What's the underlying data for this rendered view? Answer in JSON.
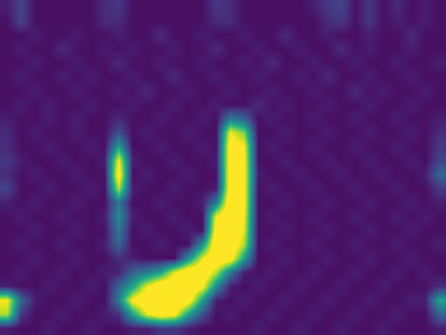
{
  "chart_data": {
    "type": "heatmap",
    "tick_labels": false,
    "zlim": [
      0,
      25
    ],
    "z": [
      [
        2,
        5,
        1,
        1,
        1,
        1,
        1,
        3,
        4,
        1,
        1,
        1,
        1,
        1,
        1,
        4,
        3,
        1,
        1,
        1,
        1,
        1,
        2,
        4,
        5,
        1,
        4,
        1,
        3,
        1,
        2,
        1
      ],
      [
        1,
        5,
        1,
        1,
        1,
        1,
        1,
        3,
        3,
        1,
        1,
        1,
        1,
        1,
        1,
        3,
        3,
        1,
        1,
        1,
        1,
        1,
        1,
        3,
        4,
        1,
        4,
        1,
        2,
        1,
        2,
        1
      ],
      [
        1,
        1,
        2,
        1,
        1,
        2,
        1,
        1,
        2,
        1,
        1,
        3,
        1,
        1,
        2,
        1,
        1,
        2,
        1,
        1,
        3,
        1,
        1,
        2,
        1,
        1,
        2,
        1,
        1,
        3,
        1,
        1
      ],
      [
        1,
        2,
        1,
        1,
        3,
        1,
        1,
        2,
        1,
        2,
        1,
        1,
        2,
        1,
        1,
        3,
        1,
        1,
        2,
        1,
        1,
        2,
        1,
        1,
        3,
        1,
        2,
        1,
        1,
        2,
        1,
        1
      ],
      [
        1,
        1,
        2,
        1,
        1,
        2,
        1,
        1,
        3,
        1,
        1,
        2,
        1,
        1,
        2,
        1,
        1,
        2,
        1,
        3,
        1,
        1,
        2,
        1,
        1,
        2,
        1,
        1,
        2,
        1,
        1,
        2
      ],
      [
        1,
        2,
        1,
        1,
        2,
        1,
        2,
        1,
        1,
        2,
        1,
        1,
        3,
        1,
        1,
        2,
        1,
        1,
        2,
        1,
        1,
        2,
        1,
        3,
        1,
        1,
        2,
        1,
        1,
        2,
        1,
        1
      ],
      [
        1,
        1,
        2,
        1,
        1,
        2,
        1,
        1,
        2,
        1,
        3,
        1,
        1,
        2,
        1,
        1,
        2,
        1,
        1,
        2,
        1,
        1,
        2,
        1,
        1,
        3,
        1,
        2,
        1,
        1,
        2,
        1
      ],
      [
        1,
        2,
        1,
        2,
        1,
        1,
        2,
        1,
        1,
        2,
        1,
        1,
        2,
        1,
        1,
        2,
        1,
        1,
        3,
        1,
        2,
        1,
        1,
        2,
        1,
        1,
        2,
        1,
        1,
        2,
        1,
        1
      ],
      [
        2,
        1,
        1,
        2,
        1,
        2,
        1,
        1,
        3,
        1,
        1,
        2,
        1,
        1,
        2,
        1,
        10,
        8,
        1,
        2,
        1,
        1,
        2,
        1,
        1,
        2,
        1,
        1,
        2,
        1,
        1,
        2
      ],
      [
        3,
        1,
        2,
        1,
        1,
        2,
        1,
        1,
        6,
        1,
        2,
        1,
        1,
        2,
        1,
        1,
        25,
        20,
        1,
        1,
        2,
        1,
        1,
        2,
        1,
        1,
        2,
        1,
        1,
        2,
        1,
        3
      ],
      [
        3,
        1,
        1,
        2,
        1,
        1,
        2,
        1,
        14,
        1,
        1,
        2,
        1,
        1,
        2,
        1,
        28,
        25,
        1,
        2,
        1,
        1,
        2,
        1,
        1,
        2,
        1,
        1,
        2,
        1,
        1,
        4
      ],
      [
        4,
        2,
        1,
        1,
        2,
        1,
        1,
        2,
        25,
        2,
        1,
        1,
        2,
        1,
        1,
        2,
        28,
        26,
        1,
        1,
        2,
        1,
        1,
        2,
        1,
        1,
        2,
        1,
        1,
        2,
        1,
        5
      ],
      [
        3,
        1,
        2,
        1,
        1,
        2,
        1,
        1,
        28,
        1,
        2,
        1,
        1,
        2,
        1,
        1,
        28,
        26,
        2,
        1,
        1,
        2,
        1,
        1,
        2,
        1,
        1,
        2,
        1,
        1,
        2,
        8
      ],
      [
        5,
        1,
        1,
        2,
        1,
        1,
        2,
        1,
        22,
        2,
        1,
        1,
        2,
        1,
        1,
        2,
        28,
        26,
        1,
        2,
        1,
        1,
        2,
        1,
        1,
        2,
        1,
        1,
        2,
        1,
        1,
        4
      ],
      [
        2,
        1,
        2,
        1,
        1,
        2,
        1,
        1,
        10,
        1,
        1,
        2,
        1,
        1,
        2,
        10,
        30,
        26,
        1,
        1,
        2,
        1,
        1,
        2,
        1,
        1,
        2,
        1,
        1,
        2,
        1,
        2
      ],
      [
        1,
        2,
        1,
        1,
        2,
        1,
        1,
        2,
        12,
        2,
        1,
        1,
        2,
        1,
        1,
        25,
        30,
        25,
        1,
        2,
        1,
        1,
        2,
        1,
        1,
        2,
        1,
        1,
        2,
        1,
        2,
        1
      ],
      [
        1,
        1,
        2,
        1,
        1,
        2,
        1,
        1,
        10,
        1,
        2,
        1,
        1,
        2,
        1,
        28,
        30,
        24,
        1,
        1,
        2,
        1,
        1,
        2,
        1,
        1,
        2,
        1,
        1,
        2,
        1,
        1
      ],
      [
        1,
        2,
        1,
        1,
        2,
        1,
        1,
        2,
        8,
        1,
        1,
        2,
        1,
        1,
        12,
        30,
        30,
        22,
        1,
        2,
        1,
        1,
        2,
        1,
        1,
        2,
        1,
        1,
        2,
        1,
        1,
        2
      ],
      [
        1,
        1,
        2,
        1,
        1,
        2,
        1,
        1,
        3,
        2,
        1,
        1,
        1,
        12,
        24,
        30,
        28,
        14,
        1,
        1,
        2,
        1,
        1,
        2,
        1,
        1,
        2,
        1,
        1,
        2,
        1,
        1
      ],
      [
        1,
        2,
        1,
        1,
        2,
        1,
        1,
        2,
        2,
        8,
        10,
        14,
        24,
        30,
        30,
        22,
        10,
        2,
        1,
        2,
        1,
        1,
        2,
        1,
        1,
        2,
        1,
        1,
        2,
        1,
        2,
        1
      ],
      [
        2,
        1,
        1,
        2,
        1,
        1,
        2,
        1,
        8,
        14,
        24,
        30,
        30,
        30,
        26,
        12,
        2,
        1,
        2,
        1,
        1,
        2,
        1,
        1,
        2,
        1,
        1,
        2,
        1,
        1,
        1,
        3
      ],
      [
        25,
        8,
        2,
        1,
        1,
        2,
        1,
        1,
        10,
        26,
        30,
        30,
        30,
        28,
        14,
        2,
        1,
        2,
        1,
        1,
        2,
        1,
        1,
        2,
        1,
        1,
        2,
        1,
        1,
        2,
        2,
        14
      ],
      [
        22,
        4,
        1,
        1,
        2,
        1,
        1,
        2,
        3,
        14,
        24,
        28,
        26,
        14,
        6,
        1,
        2,
        1,
        1,
        2,
        1,
        1,
        2,
        1,
        1,
        2,
        1,
        1,
        2,
        1,
        1,
        8
      ],
      [
        2,
        1,
        1,
        2,
        1,
        1,
        2,
        1,
        1,
        2,
        2,
        4,
        4,
        2,
        1,
        1,
        1,
        1,
        2,
        1,
        1,
        2,
        1,
        1,
        2,
        1,
        1,
        2,
        1,
        1,
        1,
        2
      ]
    ]
  }
}
